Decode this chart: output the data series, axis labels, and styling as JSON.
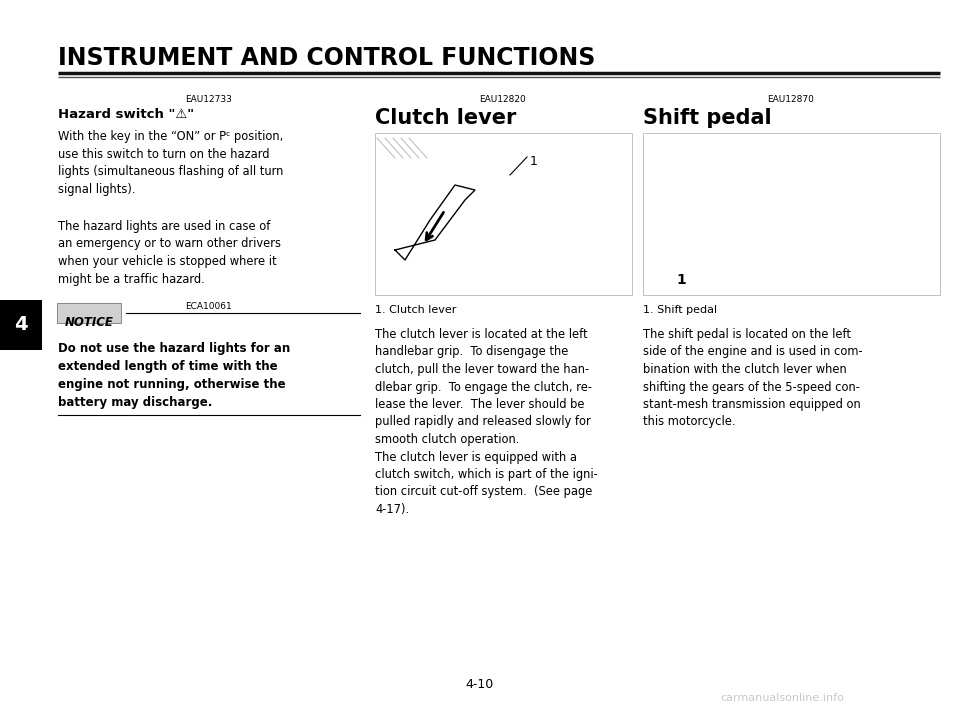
{
  "title": "INSTRUMENT AND CONTROL FUNCTIONS",
  "page_number": "4-10",
  "chapter_number": "4",
  "bg": "#ffffff",
  "section1_ref": "EAU12733",
  "section1_heading": "Hazard switch \"⚠\"",
  "section1_body1": "With the key in the “ON” or Pᶜ position,\nuse this switch to turn on the hazard\nlights (simultaneous flashing of all turn\nsignal lights).",
  "section1_body2": "The hazard lights are used in case of\nan emergency or to warn other drivers\nwhen your vehicle is stopped where it\nmight be a traffic hazard.",
  "notice_ref": "ECA10061",
  "notice_label": "NOTICE",
  "notice_body": "Do not use the hazard lights for an\nextended length of time with the\nengine not running, otherwise the\nbattery may discharge.",
  "section2_ref": "EAU12820",
  "section2_heading": "Clutch lever",
  "section2_caption": "1. Clutch lever",
  "section2_body": "The clutch lever is located at the left\nhandlebar grip.  To disengage the\nclutch, pull the lever toward the han-\ndlebar grip.  To engage the clutch, re-\nlease the lever.  The lever should be\npulled rapidly and released slowly for\nsmooth clutch operation.\nThe clutch lever is equipped with a\nclutch switch, which is part of the igni-\ntion circuit cut-off system.  (See page\n4-17).",
  "section3_ref": "EAU12870",
  "section3_heading": "Shift pedal",
  "section3_caption": "1. Shift pedal",
  "section3_body": "The shift pedal is located on the left\nside of the engine and is used in com-\nbination with the clutch lever when\nshifting the gears of the 5-speed con-\nstant-mesh transmission equipped on\nthis motorcycle.",
  "watermark": "carmanualsonline.info"
}
